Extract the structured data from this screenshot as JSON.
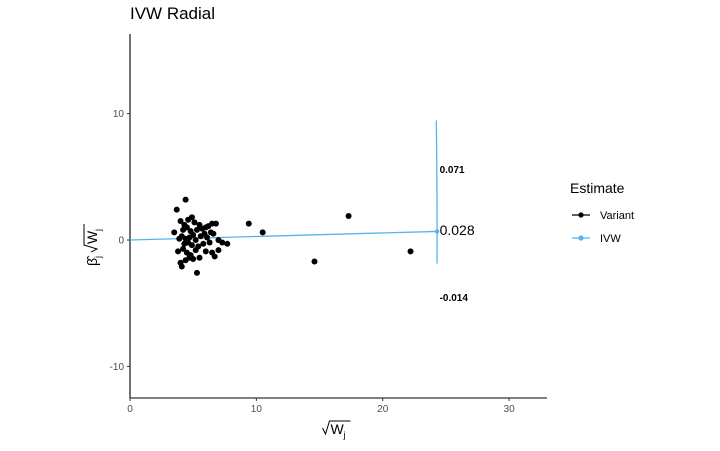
{
  "chart_data": {
    "type": "scatter",
    "title": "IVW Radial",
    "xlabel": "√W_j",
    "ylabel": "β̂_j √W_j",
    "xlim": [
      0,
      33
    ],
    "ylim": [
      -12.5,
      16.3
    ],
    "x_ticks": [
      0,
      10,
      20,
      30
    ],
    "y_ticks": [
      -10,
      0,
      10
    ],
    "grid": false,
    "legend": {
      "title": "Estimate",
      "position": "right",
      "entries": [
        {
          "label": "Variant",
          "color": "#000000"
        },
        {
          "label": "IVW",
          "color": "#56B4E9"
        }
      ]
    },
    "ivw_line": {
      "slope": 0.028,
      "x_end": 24.3
    },
    "arc_x": 24.3,
    "annotations": [
      {
        "text": "0.071",
        "x": 24.5,
        "y": 5.6,
        "size": "small"
      },
      {
        "text": "0.028",
        "x": 24.5,
        "y": 0.7,
        "size": "large"
      },
      {
        "text": "-0.014",
        "x": 24.5,
        "y": -4.5,
        "size": "small"
      }
    ],
    "series": [
      {
        "name": "Variant",
        "color": "#000000",
        "points": [
          [
            4.4,
            3.2
          ],
          [
            3.7,
            2.4
          ],
          [
            4.0,
            1.5
          ],
          [
            4.3,
            1.2
          ],
          [
            4.6,
            1.6
          ],
          [
            4.9,
            1.8
          ],
          [
            5.1,
            1.4
          ],
          [
            4.5,
            1.0
          ],
          [
            4.2,
            0.8
          ],
          [
            3.5,
            0.6
          ],
          [
            4.8,
            0.7
          ],
          [
            5.3,
            0.8
          ],
          [
            5.7,
            0.9
          ],
          [
            6.0,
            1.0
          ],
          [
            6.2,
            1.1
          ],
          [
            6.5,
            1.3
          ],
          [
            6.8,
            1.3
          ],
          [
            5.5,
            1.2
          ],
          [
            4.1,
            0.3
          ],
          [
            4.4,
            0.1
          ],
          [
            4.7,
            0.2
          ],
          [
            5.0,
            0.4
          ],
          [
            5.2,
            0.0
          ],
          [
            5.6,
            0.3
          ],
          [
            5.9,
            0.5
          ],
          [
            6.1,
            0.2
          ],
          [
            6.4,
            0.6
          ],
          [
            6.6,
            0.5
          ],
          [
            3.9,
            0.1
          ],
          [
            4.3,
            -0.3
          ],
          [
            4.6,
            -0.2
          ],
          [
            4.9,
            -0.4
          ],
          [
            5.4,
            -0.5
          ],
          [
            5.8,
            -0.3
          ],
          [
            6.3,
            -0.2
          ],
          [
            7.0,
            0.0
          ],
          [
            7.3,
            -0.2
          ],
          [
            7.7,
            -0.3
          ],
          [
            3.8,
            -0.9
          ],
          [
            4.2,
            -0.7
          ],
          [
            4.5,
            -1.0
          ],
          [
            4.8,
            -1.2
          ],
          [
            5.2,
            -0.8
          ],
          [
            5.5,
            -1.4
          ],
          [
            6.0,
            -0.9
          ],
          [
            6.5,
            -1.0
          ],
          [
            6.7,
            -1.3
          ],
          [
            7.0,
            -0.8
          ],
          [
            4.0,
            -1.8
          ],
          [
            4.4,
            -1.6
          ],
          [
            4.7,
            -1.4
          ],
          [
            4.1,
            -2.1
          ],
          [
            5.3,
            -2.6
          ],
          [
            5.0,
            -1.5
          ],
          [
            9.4,
            1.3
          ],
          [
            10.5,
            0.6
          ],
          [
            14.6,
            -1.7
          ],
          [
            17.3,
            1.9
          ],
          [
            22.2,
            -0.9
          ]
        ]
      }
    ]
  }
}
